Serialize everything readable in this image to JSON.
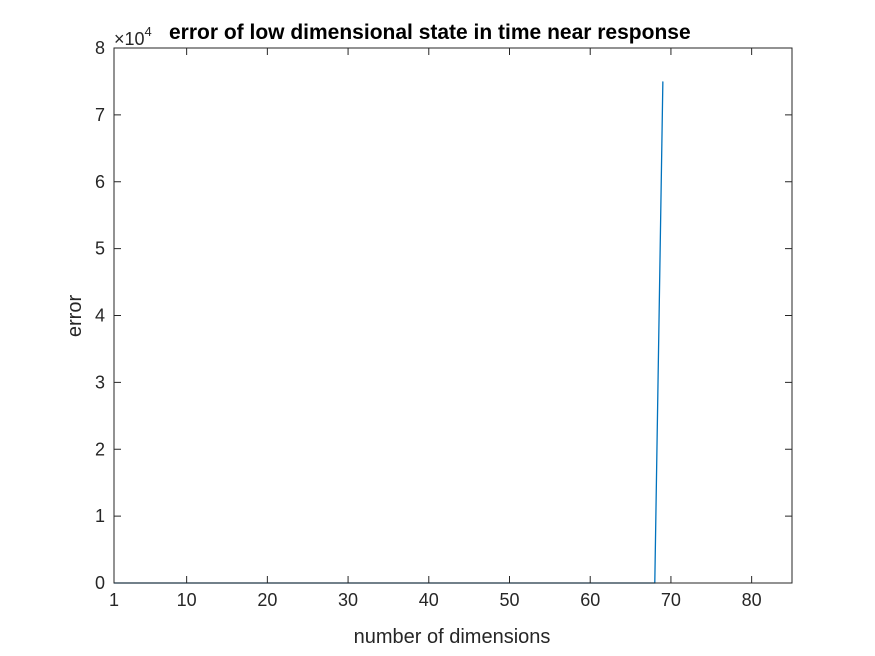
{
  "chart_data": {
    "type": "line",
    "title": "error of low dimensional state in time near response",
    "xlabel": "number of dimensions",
    "ylabel": "error",
    "y_multiplier": {
      "base": "×10",
      "exponent": "4"
    },
    "xlim": [
      1,
      85
    ],
    "ylim": [
      0,
      80000
    ],
    "x_ticks": [
      1,
      10,
      20,
      30,
      40,
      50,
      60,
      70,
      80
    ],
    "x_tick_labels": [
      "1",
      "10",
      "20",
      "30",
      "40",
      "50",
      "60",
      "70",
      "80"
    ],
    "y_ticks": [
      0,
      10000,
      20000,
      30000,
      40000,
      50000,
      60000,
      70000,
      80000
    ],
    "y_tick_labels": [
      "0",
      "1",
      "2",
      "3",
      "4",
      "5",
      "6",
      "7",
      "8"
    ],
    "grid": false,
    "series": [
      {
        "color": "#0072BD",
        "x": [
          1,
          68,
          69
        ],
        "values": [
          0,
          0,
          75000
        ]
      }
    ]
  }
}
